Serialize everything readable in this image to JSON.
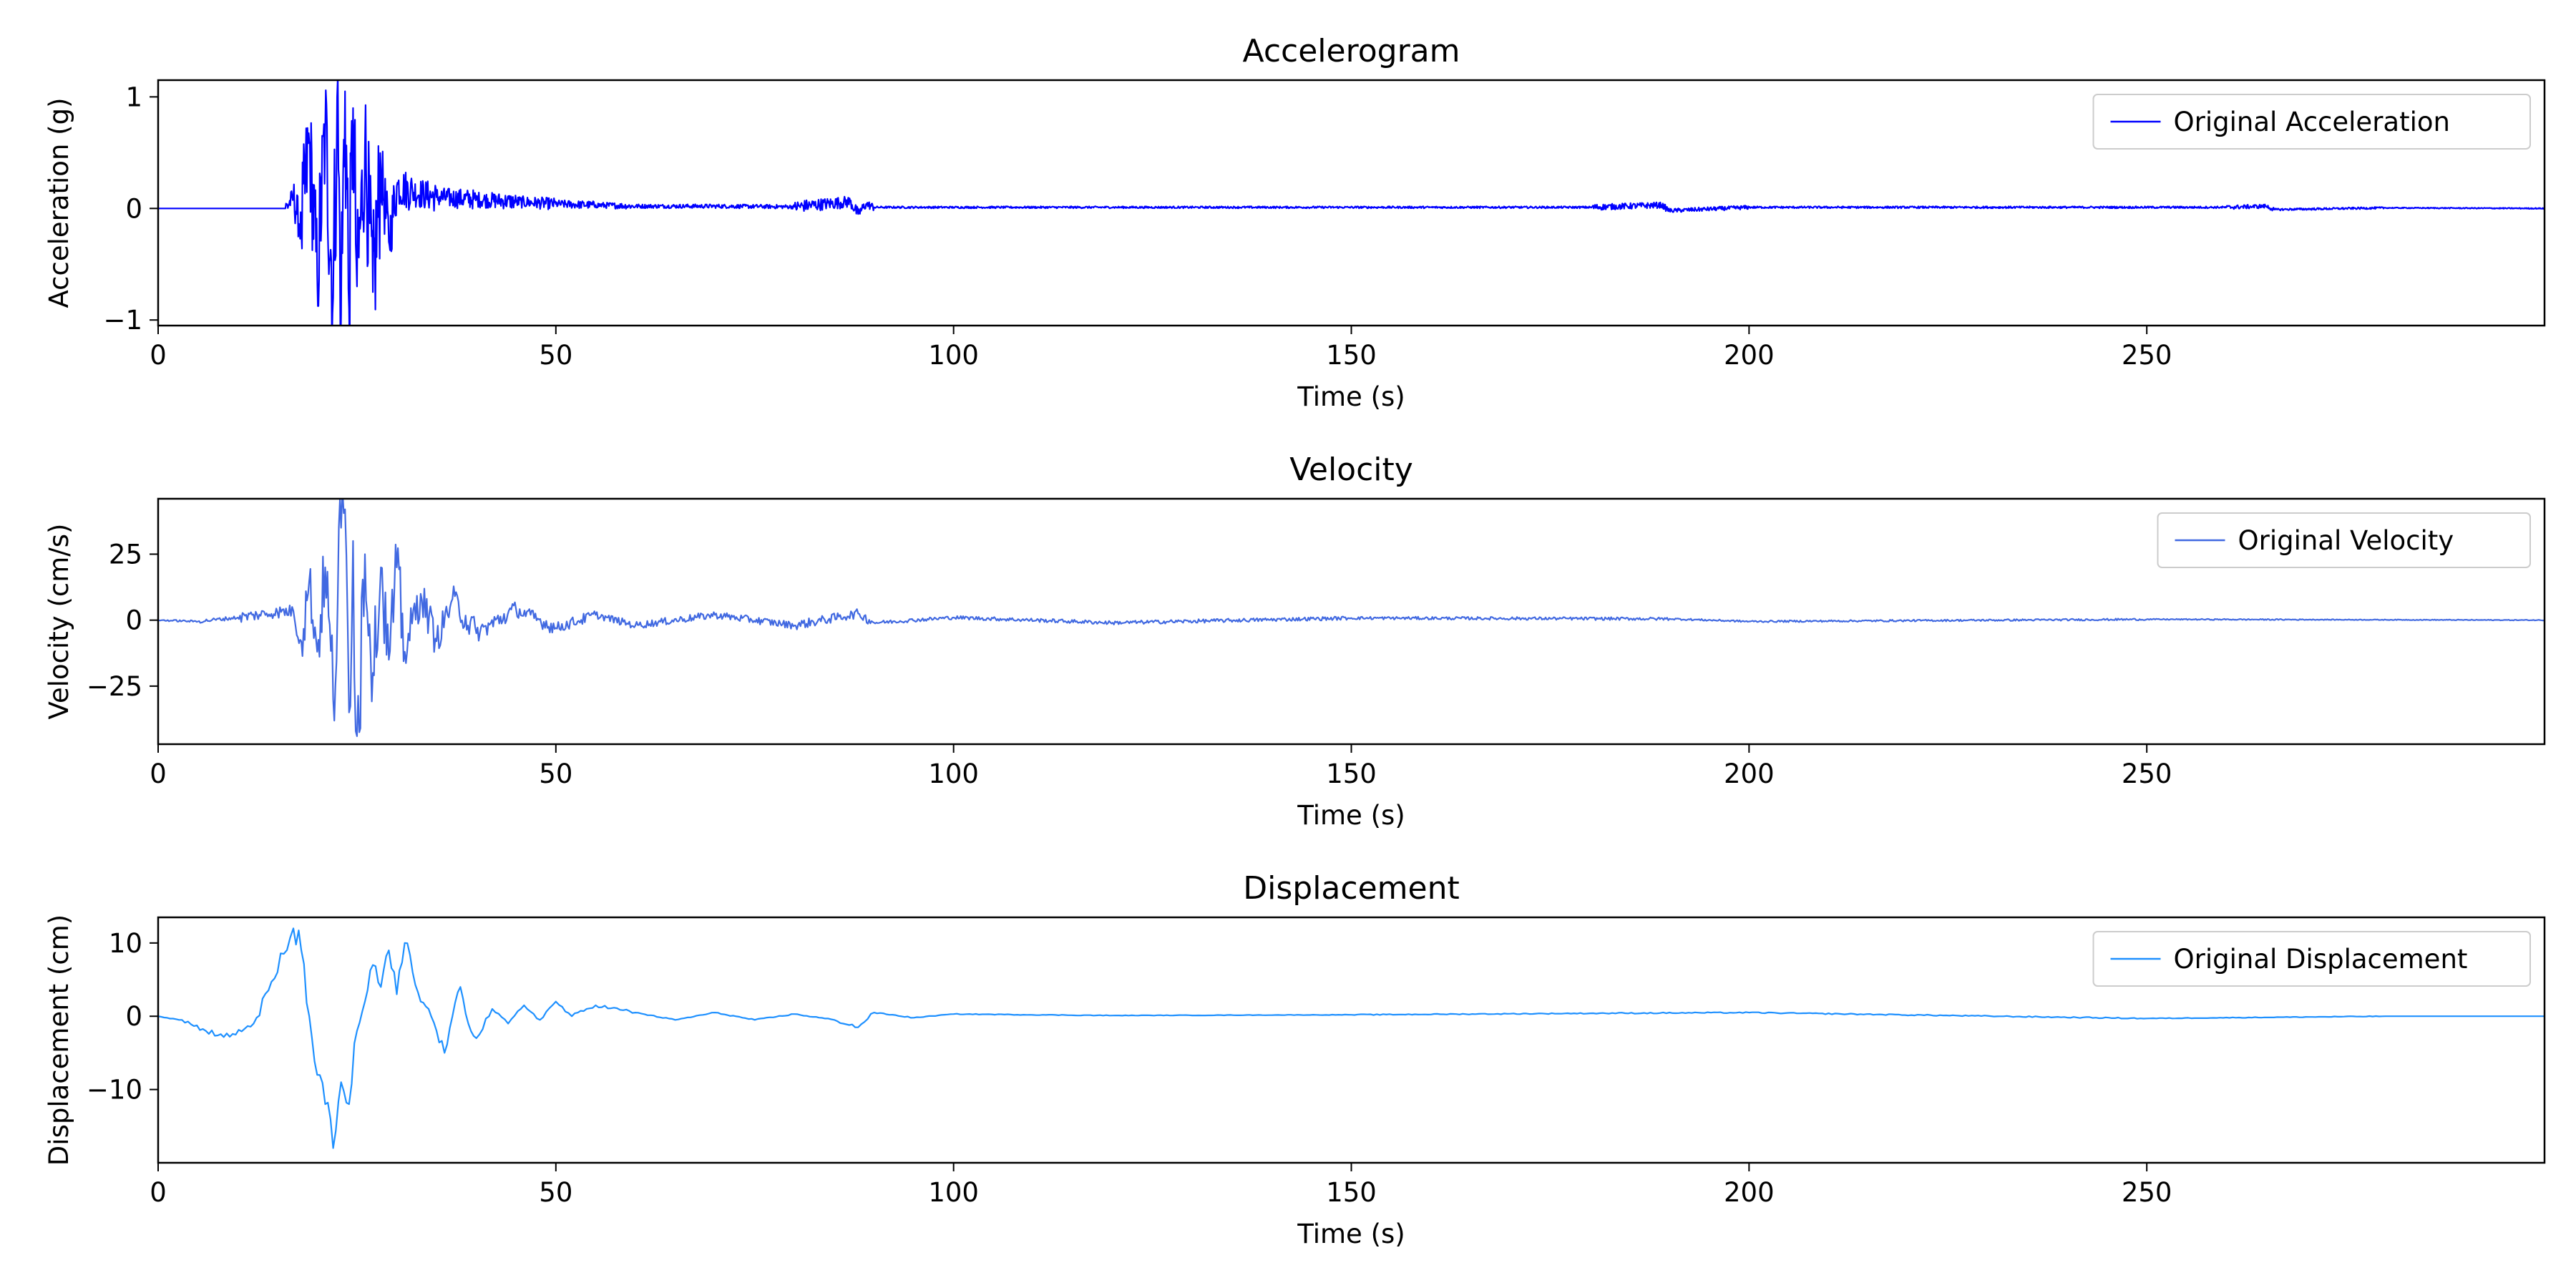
{
  "chart_data": [
    {
      "type": "line",
      "title": "Accelerogram",
      "xlabel": "Time (s)",
      "ylabel": "Acceleration (g)",
      "xlim": [
        0,
        300
      ],
      "ylim": [
        -1.05,
        1.15
      ],
      "xticks": [
        0,
        50,
        100,
        150,
        200,
        250
      ],
      "xtick_labels": [
        "0",
        "50",
        "100",
        "150",
        "200",
        "250"
      ],
      "yticks": [
        -1,
        0,
        1
      ],
      "ytick_labels": [
        "−1",
        "0",
        "1"
      ],
      "grid": false,
      "legend_position": "top-right",
      "series": [
        {
          "name": "Original Acceleration",
          "color": "#0000ff",
          "x": [
            0,
            10,
            16,
            17,
            18,
            19,
            20,
            21,
            22,
            22.5,
            23,
            23.5,
            24,
            24.5,
            25,
            26,
            27,
            28,
            29,
            30,
            32,
            35,
            40,
            45,
            50,
            55,
            60,
            70,
            80,
            87,
            88,
            89,
            90,
            100,
            120,
            140,
            160,
            180,
            189,
            190,
            200,
            220,
            240,
            260,
            265,
            266,
            280,
            300
          ],
          "y": [
            0,
            0,
            0,
            0.1,
            -0.2,
            0.6,
            -0.6,
            0.7,
            -0.8,
            1.0,
            -0.95,
            1.05,
            -0.9,
            0.9,
            -0.7,
            0.55,
            -0.75,
            0.35,
            -0.3,
            0.2,
            0.15,
            0.1,
            0.08,
            0.06,
            0.04,
            0.03,
            0.02,
            0.02,
            0.015,
            0.06,
            -0.05,
            0.04,
            0.01,
            0.01,
            0.01,
            0.01,
            0.01,
            0.01,
            0.03,
            -0.02,
            0.01,
            0.01,
            0.01,
            0.01,
            0.02,
            -0.01,
            0.005,
            0
          ]
        }
      ]
    },
    {
      "type": "line",
      "title": "Velocity",
      "xlabel": "Time (s)",
      "ylabel": "Velocity (cm/s)",
      "xlim": [
        0,
        300
      ],
      "ylim": [
        -47,
        46
      ],
      "xticks": [
        0,
        50,
        100,
        150,
        200,
        250
      ],
      "xtick_labels": [
        "0",
        "50",
        "100",
        "150",
        "200",
        "250"
      ],
      "yticks": [
        -25,
        0,
        25
      ],
      "ytick_labels": [
        "−25",
        "0",
        "25"
      ],
      "grid": false,
      "legend_position": "top-right",
      "series": [
        {
          "name": "Original Velocity",
          "color": "#4169e1",
          "x": [
            0,
            5,
            10,
            15,
            17,
            18,
            19,
            20,
            21,
            22,
            23,
            23.5,
            24,
            24.5,
            25,
            26,
            27,
            28,
            29,
            30,
            31,
            33,
            35,
            37,
            40,
            45,
            50,
            55,
            60,
            70,
            80,
            88,
            90,
            100,
            120,
            150,
            190,
            200,
            250,
            270,
            300
          ],
          "y": [
            0,
            -0.5,
            1,
            3,
            3.5,
            -8,
            15,
            -12,
            20,
            -30,
            35,
            42,
            -35,
            30,
            -44,
            25,
            -20,
            20,
            -15,
            20,
            -12,
            10,
            -8,
            8,
            -5,
            4,
            -3,
            2,
            -2,
            2,
            -2,
            2.5,
            -1,
            1,
            -1,
            0.8,
            0.5,
            -0.5,
            0.3,
            0.2,
            0
          ]
        }
      ]
    },
    {
      "type": "line",
      "title": "Displacement",
      "xlabel": "Time (s)",
      "ylabel": "Displacement (cm)",
      "xlim": [
        0,
        300
      ],
      "ylim": [
        -20,
        13.5
      ],
      "xticks": [
        0,
        50,
        100,
        150,
        200,
        250
      ],
      "xtick_labels": [
        "0",
        "50",
        "100",
        "150",
        "200",
        "250"
      ],
      "yticks": [
        -10,
        0,
        10
      ],
      "ytick_labels": [
        "−10",
        "0",
        "10"
      ],
      "grid": false,
      "legend_position": "top-right",
      "series": [
        {
          "name": "Original Displacement",
          "color": "#1e90ff",
          "x": [
            0,
            3,
            6,
            9,
            12,
            15,
            17,
            18,
            19,
            20,
            21,
            22,
            23,
            24,
            25,
            26,
            27,
            28,
            29,
            30,
            31,
            32,
            33,
            34,
            35,
            36,
            37,
            38,
            39,
            40,
            42,
            44,
            46,
            48,
            50,
            52,
            55,
            60,
            65,
            70,
            75,
            80,
            85,
            88,
            90,
            95,
            100,
            120,
            150,
            180,
            200,
            250,
            280,
            300
          ],
          "y": [
            0,
            -0.5,
            -2,
            -2.8,
            -1,
            6,
            12,
            9,
            0,
            -8,
            -12,
            -18,
            -9,
            -12,
            -2,
            2,
            7,
            4,
            9,
            3,
            10,
            6,
            2,
            1,
            -2,
            -5,
            0,
            4,
            -1,
            -3,
            1,
            -1,
            1.5,
            -0.5,
            2,
            0,
            1.5,
            0.5,
            -0.5,
            0.5,
            -0.5,
            0.3,
            -0.5,
            -1.5,
            0.5,
            -0.2,
            0.3,
            0.1,
            0.2,
            0.4,
            0.5,
            -0.3,
            0,
            0
          ]
        }
      ]
    }
  ]
}
